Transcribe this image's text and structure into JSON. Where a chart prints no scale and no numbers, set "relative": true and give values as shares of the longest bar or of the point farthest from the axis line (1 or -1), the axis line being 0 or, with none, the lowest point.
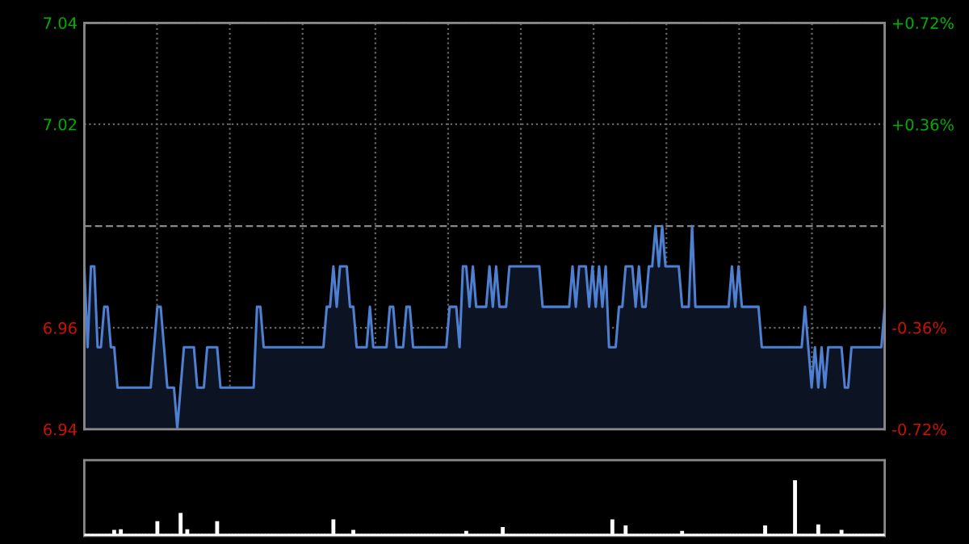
{
  "chart_data": [
    {
      "type": "area",
      "categories": [
        null,
        null,
        null,
        null,
        null,
        null,
        null,
        null,
        null,
        null,
        null,
        null,
        null,
        null,
        null,
        null,
        null,
        null,
        null,
        null,
        null,
        null,
        null,
        null,
        null,
        null,
        null,
        null,
        null,
        null,
        null,
        null,
        null,
        null,
        null,
        null,
        null,
        null,
        null,
        null,
        null,
        null,
        null,
        null,
        null,
        null,
        null,
        null,
        null,
        null,
        null,
        null,
        null,
        null,
        null,
        null,
        null,
        null,
        null,
        null,
        null,
        null,
        null,
        null,
        null,
        null,
        null,
        null,
        null,
        null,
        null,
        null,
        null,
        null,
        null,
        null,
        null,
        null,
        null,
        null,
        null,
        null,
        null,
        null,
        null,
        null,
        null,
        null,
        null,
        null,
        null,
        null,
        null,
        null,
        null,
        null,
        null,
        null,
        null,
        null,
        null,
        null,
        null,
        null,
        null,
        null,
        null,
        null,
        null,
        null,
        null,
        null,
        null,
        null,
        null,
        null,
        null,
        null,
        null,
        null,
        null,
        null,
        null,
        null,
        null,
        null,
        null,
        null,
        null,
        null,
        null,
        null,
        null,
        null,
        null,
        null,
        null,
        null,
        null,
        null,
        null,
        null,
        null,
        null,
        null,
        null,
        null,
        null,
        null,
        null,
        null,
        null,
        null,
        null,
        null,
        null,
        null,
        null,
        null,
        null,
        null,
        null,
        null,
        null,
        null,
        null,
        null,
        null,
        null,
        null,
        null,
        null,
        null,
        null,
        null,
        null,
        null,
        null,
        null,
        null,
        null,
        null,
        null,
        null,
        null,
        null,
        null,
        null,
        null,
        null,
        null,
        null,
        null,
        null,
        null,
        null,
        null,
        null,
        null,
        null,
        null,
        null,
        null,
        null,
        null,
        null,
        null,
        null,
        null,
        null,
        null,
        null,
        null,
        null,
        null,
        null,
        null,
        null,
        null,
        null,
        null,
        null,
        null,
        null,
        null,
        null,
        null,
        null,
        null,
        null,
        null,
        null,
        null,
        null,
        null,
        null,
        null,
        null,
        null,
        null,
        null,
        null
      ],
      "ylim": [
        6.9397,
        7.0403
      ],
      "yticks": [
        {
          "value": 6.9397,
          "label": "6.94"
        },
        {
          "value": 6.9648,
          "label": "6.96"
        },
        {
          "value": 7.0152,
          "label": "7.02"
        },
        {
          "value": 7.0403,
          "label": "7.04"
        }
      ],
      "y2lim": [
        -0.72,
        0.72
      ],
      "y2ticks": [
        {
          "value": -0.72,
          "label": "-0.72%"
        },
        {
          "value": -0.36,
          "label": "-0.36%"
        },
        {
          "value": 0.36,
          "label": "+0.36%"
        },
        {
          "value": 0.72,
          "label": "+0.72%"
        }
      ],
      "grid": true,
      "legend": false,
      "ref_lines": [
        {
          "axis": "y",
          "value": 6.99,
          "color": "#888888",
          "line_style": "dashed"
        }
      ],
      "series": [
        {
          "color": "#4f7fd0",
          "values": [
            6.98,
            6.96,
            6.98,
            6.98,
            6.96,
            6.96,
            6.97,
            6.97,
            6.96,
            6.96,
            6.95,
            6.95,
            6.95,
            6.95,
            6.95,
            6.95,
            6.95,
            6.95,
            6.95,
            6.95,
            6.95,
            6.96,
            6.97,
            6.97,
            6.96,
            6.95,
            6.95,
            6.95,
            6.94,
            6.95,
            6.96,
            6.96,
            6.96,
            6.96,
            6.95,
            6.95,
            6.95,
            6.96,
            6.96,
            6.96,
            6.96,
            6.95,
            6.95,
            6.95,
            6.95,
            6.95,
            6.95,
            6.95,
            6.95,
            6.95,
            6.95,
            6.95,
            6.97,
            6.97,
            6.96,
            6.96,
            6.96,
            6.96,
            6.96,
            6.96,
            6.96,
            6.96,
            6.96,
            6.96,
            6.96,
            6.96,
            6.96,
            6.96,
            6.96,
            6.96,
            6.96,
            6.96,
            6.96,
            6.97,
            6.97,
            6.98,
            6.97,
            6.98,
            6.98,
            6.98,
            6.97,
            6.97,
            6.96,
            6.96,
            6.96,
            6.96,
            6.97,
            6.96,
            6.96,
            6.96,
            6.96,
            6.96,
            6.97,
            6.97,
            6.96,
            6.96,
            6.96,
            6.97,
            6.97,
            6.96,
            6.96,
            6.96,
            6.96,
            6.96,
            6.96,
            6.96,
            6.96,
            6.96,
            6.96,
            6.96,
            6.97,
            6.97,
            6.97,
            6.96,
            6.98,
            6.98,
            6.97,
            6.98,
            6.97,
            6.97,
            6.97,
            6.97,
            6.98,
            6.97,
            6.98,
            6.97,
            6.97,
            6.97,
            6.98,
            6.98,
            6.98,
            6.98,
            6.98,
            6.98,
            6.98,
            6.98,
            6.98,
            6.98,
            6.97,
            6.97,
            6.97,
            6.97,
            6.97,
            6.97,
            6.97,
            6.97,
            6.97,
            6.98,
            6.97,
            6.98,
            6.98,
            6.98,
            6.97,
            6.98,
            6.97,
            6.98,
            6.97,
            6.98,
            6.96,
            6.96,
            6.96,
            6.97,
            6.97,
            6.98,
            6.98,
            6.98,
            6.97,
            6.98,
            6.97,
            6.97,
            6.98,
            6.98,
            6.99,
            6.98,
            6.99,
            6.98,
            6.98,
            6.98,
            6.98,
            6.98,
            6.97,
            6.97,
            6.97,
            6.99,
            6.97,
            6.97,
            6.97,
            6.97,
            6.97,
            6.97,
            6.97,
            6.97,
            6.97,
            6.97,
            6.97,
            6.98,
            6.97,
            6.98,
            6.97,
            6.97,
            6.97,
            6.97,
            6.97,
            6.97,
            6.96,
            6.96,
            6.96,
            6.96,
            6.96,
            6.96,
            6.96,
            6.96,
            6.96,
            6.96,
            6.96,
            6.96,
            6.96,
            6.97,
            6.96,
            6.95,
            6.96,
            6.95,
            6.96,
            6.95,
            6.96,
            6.96,
            6.96,
            6.96,
            6.96,
            6.95,
            6.95,
            6.96,
            6.96,
            6.96,
            6.96,
            6.96,
            6.96,
            6.96,
            6.96,
            6.96,
            6.96,
            6.97
          ]
        }
      ]
    },
    {
      "type": "bar",
      "relative": true,
      "grid": false,
      "legend": false,
      "categories": [
        null,
        null,
        null,
        null,
        null,
        null,
        null,
        null,
        null,
        null,
        null,
        null,
        null,
        null,
        null,
        null,
        null,
        null,
        null,
        null,
        null,
        null,
        null,
        null,
        null,
        null,
        null,
        null,
        null,
        null,
        null,
        null,
        null,
        null,
        null,
        null,
        null,
        null,
        null,
        null,
        null,
        null,
        null,
        null,
        null,
        null,
        null,
        null,
        null,
        null,
        null,
        null,
        null,
        null,
        null,
        null,
        null,
        null,
        null,
        null,
        null,
        null,
        null,
        null,
        null,
        null,
        null,
        null,
        null,
        null,
        null,
        null,
        null,
        null,
        null,
        null,
        null,
        null,
        null,
        null,
        null,
        null,
        null,
        null,
        null,
        null,
        null,
        null,
        null,
        null,
        null,
        null,
        null,
        null,
        null,
        null,
        null,
        null,
        null,
        null,
        null,
        null,
        null,
        null,
        null,
        null,
        null,
        null,
        null,
        null,
        null,
        null,
        null,
        null,
        null,
        null,
        null,
        null,
        null,
        null,
        null,
        null,
        null,
        null,
        null,
        null,
        null,
        null,
        null,
        null,
        null,
        null,
        null,
        null,
        null,
        null,
        null,
        null,
        null,
        null,
        null,
        null,
        null,
        null,
        null,
        null,
        null,
        null,
        null,
        null,
        null,
        null,
        null,
        null,
        null,
        null,
        null,
        null,
        null,
        null,
        null,
        null,
        null,
        null,
        null,
        null,
        null,
        null,
        null,
        null,
        null,
        null,
        null,
        null,
        null,
        null,
        null,
        null,
        null,
        null,
        null,
        null,
        null,
        null,
        null,
        null,
        null,
        null,
        null,
        null,
        null,
        null,
        null,
        null,
        null,
        null,
        null,
        null,
        null,
        null,
        null,
        null,
        null,
        null,
        null,
        null,
        null,
        null,
        null,
        null,
        null,
        null,
        null,
        null,
        null,
        null,
        null,
        null,
        null,
        null,
        null,
        null,
        null,
        null,
        null,
        null,
        null,
        null,
        null,
        null,
        null,
        null,
        null,
        null,
        null,
        null,
        null,
        null,
        null,
        null,
        null,
        null
      ],
      "series": [
        {
          "color": "#cccccc",
          "values": [
            0.02,
            0.02,
            0.02,
            0.02,
            0.02,
            0.02,
            0.02,
            0.02,
            0.02,
            0.09,
            0.02,
            0.1,
            0.02,
            0.02,
            0.02,
            0.02,
            0.02,
            0.02,
            0.02,
            0.02,
            0.02,
            0.02,
            0.25,
            0.02,
            0.02,
            0.02,
            0.02,
            0.02,
            0.02,
            0.4,
            0.02,
            0.1,
            0.02,
            0.02,
            0.02,
            0.02,
            0.02,
            0.02,
            0.02,
            0.02,
            0.25,
            0.02,
            0.02,
            0.02,
            0.02,
            0.02,
            0.02,
            0.02,
            0.02,
            0.02,
            0.02,
            0.02,
            0.02,
            0.02,
            0.02,
            0.02,
            0.02,
            0.02,
            0.02,
            0.02,
            0.02,
            0.02,
            0.02,
            0.02,
            0.02,
            0.02,
            0.02,
            0.02,
            0.02,
            0.02,
            0.02,
            0.02,
            0.02,
            0.02,
            0.02,
            0.28,
            0.02,
            0.02,
            0.02,
            0.02,
            0.02,
            0.09,
            0.02,
            0.02,
            0.02,
            0.02,
            0.02,
            0.02,
            0.02,
            0.02,
            0.02,
            0.02,
            0.02,
            0.02,
            0.02,
            0.02,
            0.02,
            0.02,
            0.02,
            0.02,
            0.02,
            0.02,
            0.02,
            0.02,
            0.02,
            0.02,
            0.02,
            0.02,
            0.02,
            0.02,
            0.02,
            0.02,
            0.02,
            0.02,
            0.02,
            0.07,
            0.02,
            0.02,
            0.02,
            0.02,
            0.02,
            0.02,
            0.02,
            0.02,
            0.02,
            0.02,
            0.14,
            0.02,
            0.02,
            0.02,
            0.02,
            0.02,
            0.02,
            0.02,
            0.02,
            0.02,
            0.02,
            0.02,
            0.02,
            0.02,
            0.02,
            0.02,
            0.02,
            0.02,
            0.02,
            0.02,
            0.02,
            0.02,
            0.02,
            0.02,
            0.02,
            0.02,
            0.02,
            0.02,
            0.02,
            0.02,
            0.02,
            0.02,
            0.02,
            0.28,
            0.02,
            0.02,
            0.02,
            0.17,
            0.02,
            0.02,
            0.02,
            0.02,
            0.02,
            0.02,
            0.02,
            0.02,
            0.02,
            0.02,
            0.02,
            0.02,
            0.02,
            0.02,
            0.02,
            0.02,
            0.07,
            0.02,
            0.02,
            0.02,
            0.02,
            0.02,
            0.02,
            0.02,
            0.02,
            0.02,
            0.02,
            0.02,
            0.02,
            0.02,
            0.02,
            0.02,
            0.02,
            0.02,
            0.02,
            0.02,
            0.02,
            0.02,
            0.02,
            0.02,
            0.02,
            0.17,
            0.02,
            0.02,
            0.02,
            0.02,
            0.02,
            0.02,
            0.02,
            0.02,
            1,
            0.02,
            0.02,
            0.02,
            0.02,
            0.02,
            0.02,
            0.19,
            0.02,
            0.02,
            0.02,
            0.02,
            0.02,
            0.02,
            0.09,
            0.02,
            0.02,
            0.02,
            0.02,
            0.02,
            0.02,
            0.02,
            0.02,
            0.02,
            0.02,
            0.02,
            0.02,
            0.02
          ]
        }
      ]
    }
  ]
}
